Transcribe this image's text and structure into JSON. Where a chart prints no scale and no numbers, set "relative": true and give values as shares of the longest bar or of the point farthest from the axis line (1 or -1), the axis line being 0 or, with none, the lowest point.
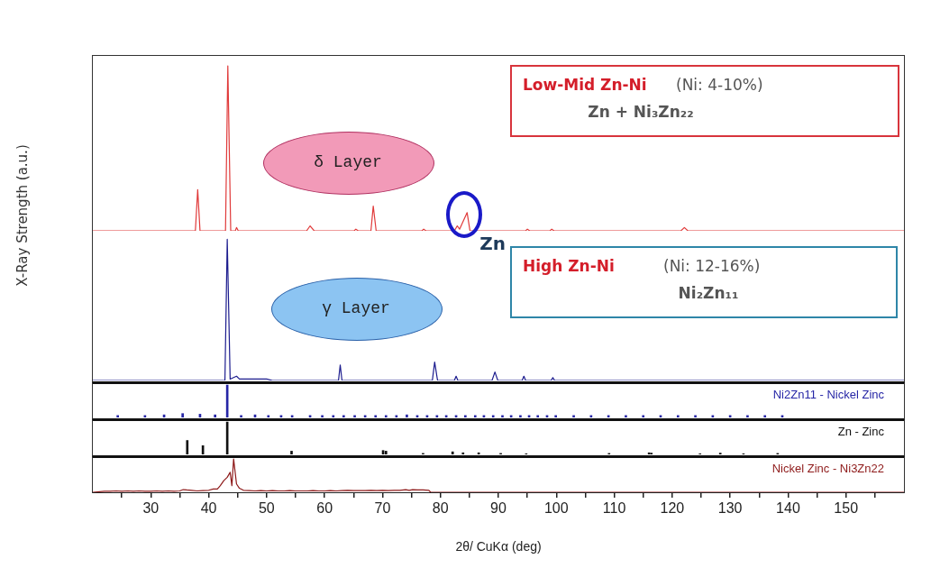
{
  "chart_data": [
    {
      "type": "line",
      "relative": true,
      "ylabel": "X-Ray Strength (a.u.)",
      "xlim": [
        20,
        160
      ],
      "marker": "none",
      "line_style": "solid",
      "annotations": [
        "δ Layer",
        "Low-Mid Zn-Ni",
        "(Ni: 4-10%)",
        "Zn + Ni₃Zn₂₂",
        {
          "text": "Zn",
          "x": 84.6,
          "y": 0.11
        }
      ],
      "series": [
        {
          "color": "#e03a3a",
          "x": [
            20,
            37.7,
            38.1,
            38.5,
            42.9,
            43.3,
            43.8,
            44.6,
            44.8,
            45.1,
            56.9,
            57.5,
            58.2,
            65.1,
            65.4,
            65.8,
            68.0,
            68.4,
            68.9,
            76.8,
            77.1,
            77.5,
            82.4,
            82.9,
            83.3,
            84.6,
            85.1,
            94.7,
            95,
            95.4,
            98.9,
            99.2,
            99.6,
            121.5,
            122.1,
            122.7,
            160
          ],
          "values": [
            0,
            0,
            0.25,
            0,
            0,
            1,
            0,
            0,
            0.02,
            0,
            0,
            0.03,
            0,
            0,
            0.01,
            0,
            0,
            0.15,
            0,
            0,
            0.01,
            0,
            0,
            0.03,
            0.01,
            0.11,
            0,
            0,
            0.01,
            0,
            0,
            0.01,
            0,
            0,
            0.02,
            0,
            0
          ]
        }
      ]
    },
    {
      "type": "line",
      "relative": true,
      "xlim": [
        20,
        160
      ],
      "marker": "none",
      "line_style": "solid",
      "annotations": [
        "γ Layer",
        "High Zn-Ni",
        "(Ni: 12-16%)",
        "Ni₂Zn₁₁"
      ],
      "series": [
        {
          "color": "#1c1c8e",
          "x": [
            20,
            42.8,
            43.2,
            43.7,
            44.8,
            45.3,
            47,
            50,
            51,
            62.4,
            62.7,
            63.0,
            78.6,
            79.0,
            79.5,
            82.4,
            82.7,
            83.0,
            88.9,
            89.4,
            89.9,
            94.1,
            94.4,
            94.7,
            99.1,
            99.4,
            99.7,
            160
          ],
          "values": [
            0,
            0,
            1,
            0.01,
            0.03,
            0.01,
            0.01,
            0.01,
            0,
            0,
            0.11,
            0,
            0,
            0.13,
            0,
            0,
            0.03,
            0,
            0,
            0.06,
            0,
            0,
            0.03,
            0,
            0,
            0.02,
            0,
            0
          ]
        }
      ]
    },
    {
      "type": "bar",
      "relative": true,
      "xlim": [
        20,
        160
      ],
      "series": [
        {
          "name": "Ni2Zn11 - Nickel Zinc",
          "color": "#2626a6",
          "x": [
            24.3,
            29,
            32.3,
            35.5,
            38.5,
            41.1,
            43.2,
            45.6,
            48.0,
            50.3,
            52.5,
            54.4,
            57.5,
            59.6,
            61.5,
            63.3,
            65.2,
            67.0,
            68.8,
            70.6,
            72.4,
            74.2,
            76.0,
            77.7,
            79.4,
            81.0,
            82.7,
            84.3,
            86.0,
            87.5,
            89.1,
            90.7,
            92.2,
            93.8,
            95.3,
            96.8,
            98.4,
            99.9,
            103,
            106,
            109,
            112,
            115,
            118,
            121,
            124,
            127,
            130,
            133,
            136,
            139
          ],
          "values": [
            0.06,
            0.06,
            0.08,
            0.12,
            0.1,
            0.08,
            1,
            0.06,
            0.08,
            0.06,
            0.06,
            0.06,
            0.06,
            0.06,
            0.06,
            0.06,
            0.06,
            0.06,
            0.06,
            0.06,
            0.06,
            0.08,
            0.06,
            0.06,
            0.06,
            0.06,
            0.06,
            0.06,
            0.06,
            0.06,
            0.06,
            0.06,
            0.06,
            0.06,
            0.06,
            0.06,
            0.06,
            0.06,
            0.06,
            0.06,
            0.06,
            0.06,
            0.06,
            0.06,
            0.06,
            0.06,
            0.06,
            0.06,
            0.06,
            0.06,
            0.06
          ]
        }
      ]
    },
    {
      "type": "bar",
      "relative": true,
      "xlim": [
        20,
        160
      ],
      "series": [
        {
          "name": "Zn - Zinc",
          "color": "#111111",
          "x": [
            36.3,
            39.0,
            43.2,
            54.3,
            70.1,
            70.6,
            77.0,
            82.1,
            83.9,
            86.6,
            90.4,
            94.8,
            109.1,
            116.0,
            116.4,
            124.8,
            128.3,
            132.3,
            138.2
          ],
          "values": [
            0.43,
            0.27,
            1,
            0.1,
            0.12,
            0.1,
            0.03,
            0.08,
            0.05,
            0.05,
            0.03,
            0.02,
            0.03,
            0.05,
            0.04,
            0.02,
            0.04,
            0.02,
            0.03
          ]
        }
      ]
    },
    {
      "type": "line",
      "relative": true,
      "marker": "none",
      "line_style": "solid",
      "xlabel": "2θ/ CuKα (deg)",
      "xlim": [
        20,
        160
      ],
      "xticks": [
        {
          "value": 25,
          "label": null
        },
        30,
        {
          "value": 35,
          "label": null
        },
        40,
        {
          "value": 45,
          "label": null
        },
        50,
        {
          "value": 55,
          "label": null
        },
        60,
        {
          "value": 65,
          "label": null
        },
        70,
        {
          "value": 75,
          "label": null
        },
        80,
        {
          "value": 85,
          "label": null
        },
        90,
        {
          "value": 95,
          "label": null
        },
        100,
        {
          "value": 105,
          "label": null
        },
        110,
        {
          "value": 115,
          "label": null
        },
        120,
        {
          "value": 125,
          "label": null
        },
        130,
        {
          "value": 135,
          "label": null
        },
        140,
        {
          "value": 145,
          "label": null
        },
        150,
        {
          "value": 155,
          "label": null
        }
      ],
      "series": [
        {
          "name": "Nickel Zinc - Ni3Zn22",
          "color": "#8e1a1a",
          "x": [
            20,
            22,
            23,
            24,
            25,
            26,
            27,
            28,
            29,
            30,
            31,
            32,
            33,
            34,
            35,
            35.6,
            36.2,
            37,
            38,
            39,
            40,
            40.8,
            41.5,
            42.0,
            42.6,
            43.2,
            43.7,
            44.0,
            44.3,
            44.8,
            45.3,
            46,
            47,
            48,
            49,
            50,
            51,
            52,
            53,
            54,
            55,
            56,
            57,
            58,
            59,
            60,
            61,
            62,
            63,
            64,
            65,
            66,
            67,
            68,
            69,
            70,
            71,
            72,
            73,
            74,
            74.6,
            75.2,
            76,
            77,
            78,
            78.3,
            160
          ],
          "values": [
            0,
            0.03,
            0.03,
            0.04,
            0.03,
            0.04,
            0.03,
            0.04,
            0.03,
            0.03,
            0.04,
            0.03,
            0.04,
            0.03,
            0.04,
            0.08,
            0.07,
            0.06,
            0.04,
            0.05,
            0.06,
            0.1,
            0.1,
            0.2,
            0.35,
            0.45,
            0.6,
            0.2,
            1,
            0.25,
            0.12,
            0.06,
            0.05,
            0.04,
            0.05,
            0.04,
            0.05,
            0.04,
            0.04,
            0.05,
            0.04,
            0.04,
            0.04,
            0.05,
            0.04,
            0.04,
            0.05,
            0.04,
            0.05,
            0.06,
            0.05,
            0.05,
            0.05,
            0.06,
            0.05,
            0.06,
            0.05,
            0.06,
            0.06,
            0.08,
            0.06,
            0.08,
            0.07,
            0.07,
            0.06,
            0,
            0
          ]
        }
      ]
    }
  ]
}
